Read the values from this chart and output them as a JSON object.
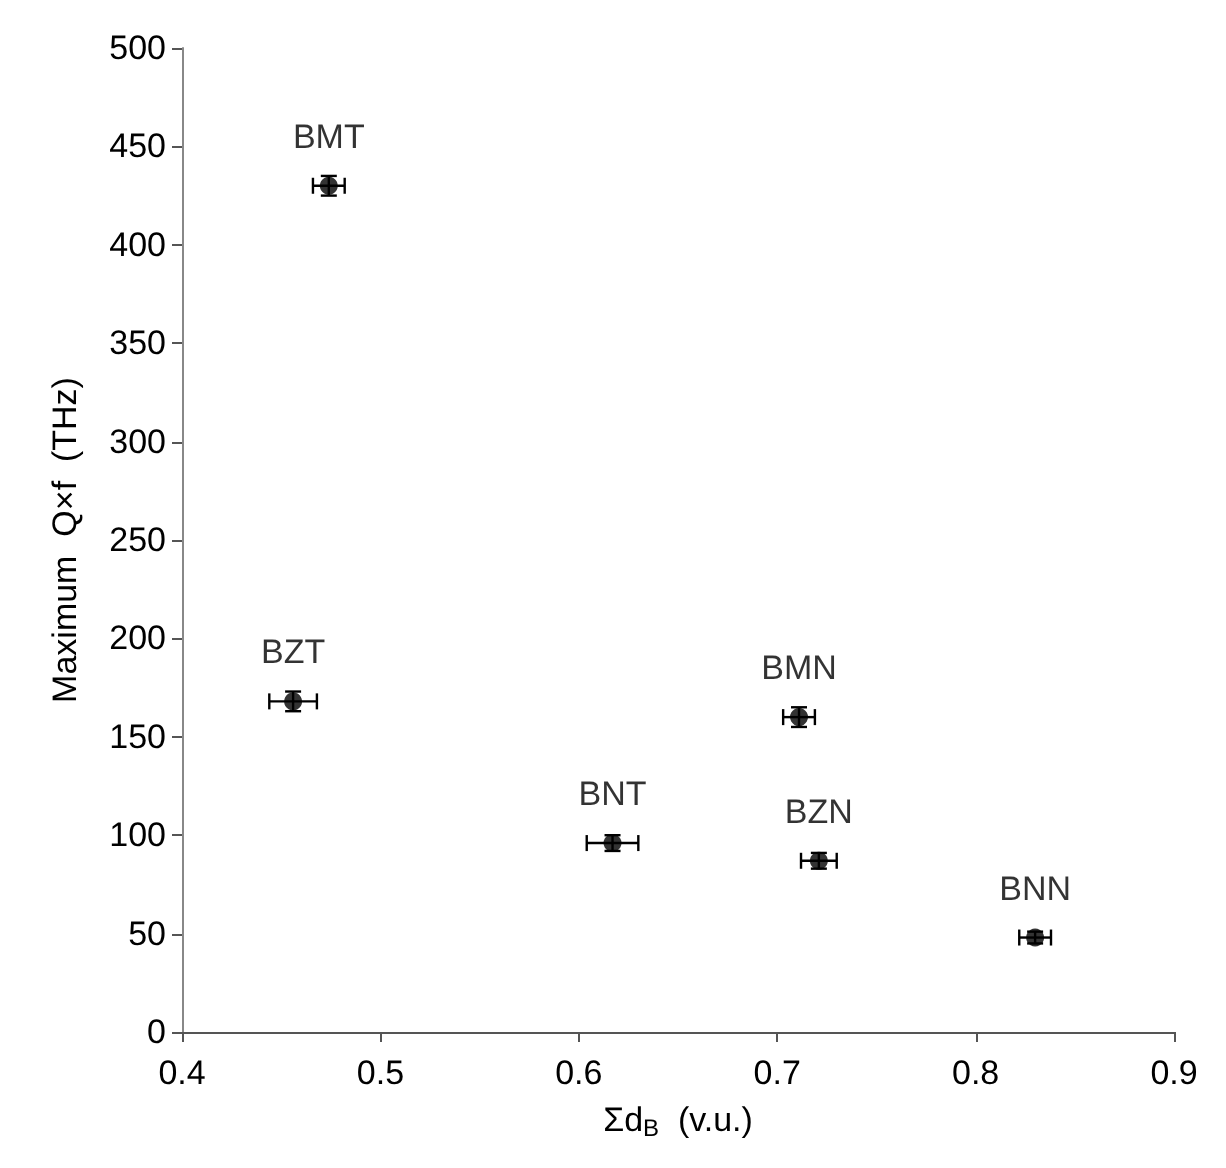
{
  "chart_data": {
    "type": "scatter",
    "xlabel": "Σd$_{B}$  (v.u.)",
    "ylabel": "Maximum  Q×f  (THz)",
    "x": [
      0.474,
      0.456,
      0.617,
      0.711,
      0.721,
      0.83
    ],
    "values": [
      430,
      168,
      96,
      160,
      87,
      48
    ],
    "xerrors": [
      0.008,
      0.012,
      0.013,
      0.008,
      0.009,
      0.008
    ],
    "errors": [
      5,
      5,
      4,
      5,
      4,
      3
    ],
    "color": "#000000",
    "marker": "circle",
    "grid": false,
    "xlim": [
      0.4,
      0.9
    ],
    "xticks": [
      0.4,
      0.5,
      0.6,
      0.7,
      0.8,
      0.9
    ],
    "ylim": [
      0,
      500
    ],
    "yticks": [
      0,
      50,
      100,
      150,
      200,
      250,
      300,
      350,
      400,
      450,
      500
    ],
    "annotations": [
      {
        "text": "BMT",
        "x": 0.474,
        "y": 430
      },
      {
        "text": "BZT",
        "x": 0.456,
        "y": 168
      },
      {
        "text": "BNT",
        "x": 0.617,
        "y": 96
      },
      {
        "text": "BMN",
        "x": 0.711,
        "y": 160
      },
      {
        "text": "BZN",
        "x": 0.721,
        "y": 87
      },
      {
        "text": "BNN",
        "x": 0.83,
        "y": 48
      }
    ]
  }
}
